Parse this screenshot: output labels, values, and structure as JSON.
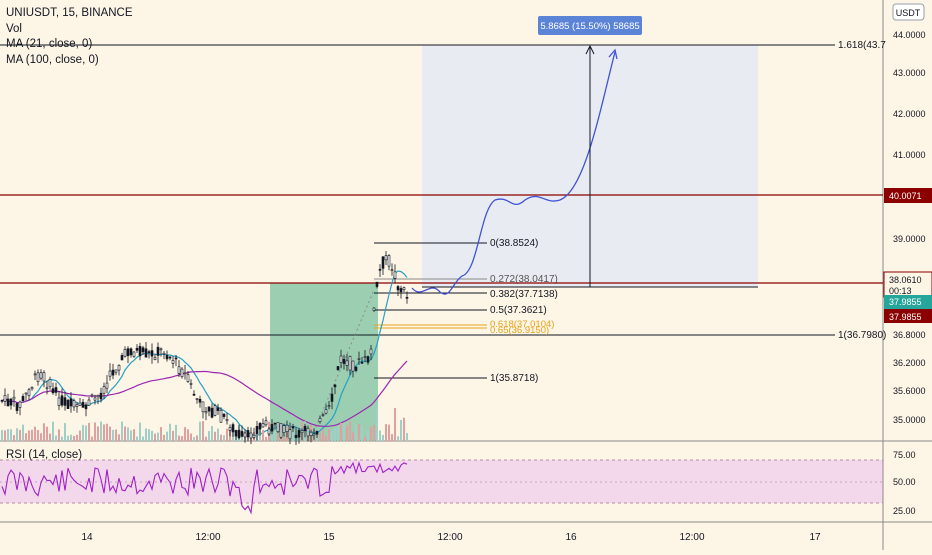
{
  "legend": {
    "symbol": "UNIUSDT, 15, BINANCE",
    "vol": "Vol",
    "ma21": "MA (21, close, 0)",
    "ma100": "MA (100, close, 0)"
  },
  "currency": "USDT",
  "y_axis_ticks": [
    "44.0000",
    "43.0000",
    "42.0000",
    "41.0000",
    "39.0000",
    "36.8000",
    "36.2000",
    "35.6000",
    "35.0000"
  ],
  "price_tags": {
    "resistance": "40.0071",
    "current": "38.0610",
    "countdown": "00:13",
    "bid": "37.9855",
    "last": "37.9855"
  },
  "measure_label": "5.8685 (15.50%) 58685",
  "fib_levels": [
    "0(38.8524)",
    "0.272(38.0417)",
    "0.382(37.7138)",
    "0.5(37.3621)",
    "0.618(37.0104)",
    "0.65(36.9150)",
    "1(35.8718)"
  ],
  "fib_right": {
    "ext": "1.618(43.7",
    "one": "1(36.7980)"
  },
  "rsi": {
    "title": "RSI (14, close)",
    "ticks": [
      "75.00",
      "50.00",
      "25.00"
    ]
  },
  "x_axis_ticks": [
    "14",
    "12:00",
    "15",
    "12:00",
    "16",
    "12:00",
    "17"
  ],
  "colors": {
    "background": "#fdf5e6",
    "up": "#131722",
    "down": "#131722",
    "ma21": "#26a0c4",
    "ma100": "#9c27b0",
    "projection": "#3f51d8",
    "resistance": "#8b0000",
    "target_box": "#e9ecf2",
    "green_box": "#4caf86",
    "fib_gold": "#e6a31b",
    "rsi_band": "#f3d8ec",
    "rsi_line": "#a020c8"
  },
  "chart_data": {
    "type": "candlestick",
    "title": "UNIUSDT, 15, BINANCE",
    "y_unit": "USDT",
    "ylim": [
      34.7,
      44.35
    ],
    "x_ticks": [
      "14",
      "12:00",
      "15",
      "12:00",
      "16",
      "12:00",
      "17"
    ],
    "series": [
      {
        "name": "MA (21, close, 0)",
        "type": "line"
      },
      {
        "name": "MA (100, close, 0)",
        "type": "line"
      }
    ],
    "horizontal_levels": [
      43.7,
      40.0071,
      38.061,
      36.798
    ],
    "fibonacci_retracement": [
      {
        "ratio": 0,
        "price": 38.8524
      },
      {
        "ratio": 0.272,
        "price": 38.0417
      },
      {
        "ratio": 0.382,
        "price": 37.7138
      },
      {
        "ratio": 0.5,
        "price": 37.3621
      },
      {
        "ratio": 0.618,
        "price": 37.0104
      },
      {
        "ratio": 0.65,
        "price": 36.915
      },
      {
        "ratio": 1,
        "price": 35.8718
      }
    ],
    "fib_extension": {
      "ratio": 1.618,
      "price": 43.7
    },
    "measure": {
      "change": 5.8685,
      "percent": 15.5
    },
    "last_price": 37.9855,
    "rsi": {
      "name": "RSI (14, close)",
      "levels": [
        75,
        50,
        25
      ],
      "last": 70
    }
  }
}
